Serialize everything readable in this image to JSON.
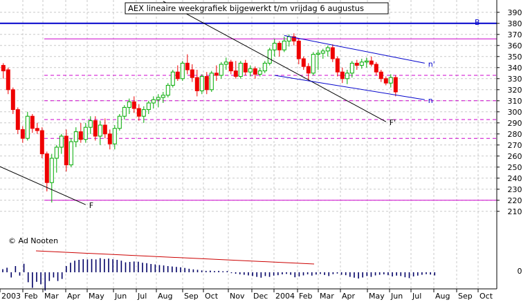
{
  "chart_data": {
    "type": "candlestick",
    "title": "AEX lineaire weekgrafiek bijgewerkt t/m vrijdag 6 augustus",
    "credit": "© Ad Nooten",
    "y_axis": {
      "min": 200,
      "max": 395,
      "position": "right",
      "ticks": [
        210,
        220,
        230,
        240,
        250,
        260,
        270,
        280,
        290,
        300,
        310,
        320,
        330,
        340,
        350,
        360,
        370,
        380,
        390
      ]
    },
    "x_axis": {
      "labels": [
        "2003",
        "Feb",
        "Mar",
        "Apr",
        "May",
        "Jun",
        "Jul",
        "Aug",
        "Sep",
        "Oct",
        "Nov",
        "Dec",
        "2004",
        "Feb",
        "Mar",
        "Apr",
        "May",
        "Jun",
        "Jul",
        "Aug",
        "Sep",
        "Oct"
      ]
    },
    "grid": true,
    "volume_axis_label": "0",
    "weeks": [
      [
        342,
        344,
        330,
        337
      ],
      [
        338,
        340,
        316,
        320
      ],
      [
        320,
        322,
        298,
        302
      ],
      [
        302,
        304,
        280,
        284
      ],
      [
        284,
        287,
        272,
        276
      ],
      [
        276,
        300,
        274,
        296
      ],
      [
        296,
        298,
        281,
        285
      ],
      [
        285,
        290,
        280,
        283
      ],
      [
        283,
        286,
        258,
        262
      ],
      [
        262,
        264,
        228,
        236
      ],
      [
        236,
        262,
        218,
        258
      ],
      [
        258,
        270,
        245,
        268
      ],
      [
        268,
        280,
        262,
        278
      ],
      [
        278,
        284,
        246,
        252
      ],
      [
        252,
        276,
        250,
        273
      ],
      [
        273,
        286,
        268,
        282
      ],
      [
        282,
        290,
        272,
        275
      ],
      [
        275,
        290,
        272,
        286
      ],
      [
        286,
        296,
        280,
        292
      ],
      [
        292,
        296,
        274,
        278
      ],
      [
        278,
        292,
        270,
        288
      ],
      [
        288,
        294,
        276,
        280
      ],
      [
        280,
        284,
        266,
        271
      ],
      [
        271,
        288,
        266,
        285
      ],
      [
        285,
        298,
        283,
        296
      ],
      [
        296,
        306,
        293,
        304
      ],
      [
        304,
        312,
        298,
        309
      ],
      [
        309,
        314,
        299,
        303
      ],
      [
        303,
        307,
        292,
        296
      ],
      [
        296,
        305,
        290,
        302
      ],
      [
        302,
        310,
        298,
        308
      ],
      [
        308,
        314,
        303,
        311
      ],
      [
        311,
        316,
        304,
        313
      ],
      [
        313,
        318,
        308,
        315
      ],
      [
        315,
        326,
        313,
        324
      ],
      [
        324,
        338,
        322,
        336
      ],
      [
        336,
        342,
        328,
        330
      ],
      [
        330,
        346,
        328,
        344
      ],
      [
        344,
        352,
        334,
        338
      ],
      [
        338,
        343,
        327,
        331
      ],
      [
        331,
        338,
        314,
        319
      ],
      [
        319,
        334,
        316,
        332
      ],
      [
        332,
        336,
        316,
        320
      ],
      [
        320,
        337,
        318,
        335
      ],
      [
        335,
        342,
        328,
        333
      ],
      [
        333,
        345,
        330,
        343
      ],
      [
        343,
        349,
        338,
        345
      ],
      [
        345,
        347,
        334,
        337
      ],
      [
        337,
        346,
        330,
        332
      ],
      [
        332,
        346,
        330,
        344
      ],
      [
        344,
        347,
        333,
        336
      ],
      [
        336,
        342,
        332,
        339
      ],
      [
        339,
        341,
        330,
        334
      ],
      [
        334,
        340,
        332,
        337
      ],
      [
        337,
        346,
        335,
        344
      ],
      [
        344,
        358,
        342,
        356
      ],
      [
        356,
        366,
        350,
        362
      ],
      [
        362,
        364,
        350,
        356
      ],
      [
        356,
        368,
        354,
        364
      ],
      [
        364,
        370,
        359,
        368
      ],
      [
        368,
        371,
        360,
        364
      ],
      [
        364,
        366,
        343,
        348
      ],
      [
        348,
        350,
        338,
        341
      ],
      [
        341,
        344,
        328,
        335
      ],
      [
        335,
        354,
        333,
        352
      ],
      [
        352,
        356,
        338,
        353
      ],
      [
        353,
        357,
        348,
        355
      ],
      [
        355,
        360,
        350,
        358
      ],
      [
        358,
        361,
        345,
        348
      ],
      [
        348,
        350,
        332,
        336
      ],
      [
        336,
        340,
        326,
        330
      ],
      [
        330,
        338,
        325,
        335
      ],
      [
        335,
        346,
        331,
        344
      ],
      [
        344,
        347,
        338,
        342
      ],
      [
        342,
        348,
        339,
        345
      ],
      [
        345,
        349,
        340,
        346
      ],
      [
        346,
        350,
        341,
        343
      ],
      [
        343,
        345,
        333,
        336
      ],
      [
        336,
        338,
        327,
        330
      ],
      [
        330,
        332,
        324,
        326
      ],
      [
        326,
        334,
        322,
        331
      ],
      [
        331,
        333,
        314,
        318
      ]
    ],
    "volume_signed": [
      1.5,
      2.2,
      -2.5,
      3.0,
      -1.6,
      4.1,
      -4.8,
      -7.5,
      -4.6,
      -5.8,
      -8.8,
      -4.2,
      -2.5,
      -4.2,
      -3.2,
      3.0,
      4.6,
      5.6,
      6.0,
      6.3,
      6.2,
      6.4,
      6.2,
      6.8,
      6.4,
      6.6,
      6.3,
      6.0,
      5.6,
      4.8,
      5.0,
      5.2,
      5.1,
      4.6,
      4.4,
      4.0,
      3.8,
      3.5,
      3.3,
      3.0,
      2.8,
      2.6,
      2.4,
      2.1,
      1.7,
      1.4,
      1.2,
      0.9,
      0.7,
      0.8,
      0.6,
      0.7,
      0.5,
      0.6,
      -0.4,
      -0.7,
      -1.0,
      -1.2,
      -1.5,
      -1.8,
      -2.2,
      -2.6,
      -1.8,
      -2.2,
      -1.6,
      -1.4,
      -1.0,
      -0.8,
      -1.2,
      -2.4,
      -2.0,
      -1.5,
      -1.0,
      -1.6,
      -1.1,
      -0.8,
      -1.3,
      -1.8,
      -0.9,
      -0.6,
      -1.2,
      -1.4,
      -2.2,
      -2.6,
      -3.0,
      -2.5,
      -1.8,
      -2.2,
      -1.5,
      -1.2,
      -1.0,
      -1.4,
      -2.0,
      -1.6,
      -1.8,
      -2.4,
      -2.8,
      -2.0,
      -1.6,
      -1.2,
      -0.9,
      -1.1,
      -1.5
    ],
    "horizontal_lines": [
      {
        "value": 380,
        "style": "solid",
        "color": "#0000cc",
        "label": "B"
      },
      {
        "value": 366,
        "style": "solid",
        "color": "#cc00cc"
      },
      {
        "value": 333,
        "style": "dashed",
        "color": "#cc00cc"
      },
      {
        "value": 310,
        "style": "dashed",
        "color": "#cc00cc"
      },
      {
        "value": 293,
        "style": "dashed",
        "color": "#cc00cc"
      },
      {
        "value": 276,
        "style": "dashed",
        "color": "#cc00cc"
      },
      {
        "value": 220,
        "style": "solid",
        "color": "#cc00cc"
      }
    ],
    "trend_lines": [
      {
        "label": "F",
        "color": "#000000",
        "from": {
          "week": -2,
          "value": 253
        },
        "to": {
          "week": 17,
          "value": 216
        }
      },
      {
        "label": "F'",
        "color": "#000000",
        "from": {
          "week": 33,
          "value": 400
        },
        "to": {
          "week": 79,
          "value": 291
        }
      },
      {
        "label": "n'",
        "color": "#0000cc",
        "from": {
          "week": 58,
          "value": 369
        },
        "to": {
          "week": 87,
          "value": 344
        }
      },
      {
        "label": "n",
        "color": "#0000cc",
        "from": {
          "week": 56,
          "value": 333
        },
        "to": {
          "week": 87,
          "value": 311
        }
      },
      {
        "label": "",
        "color": "#cc0000",
        "from": {
          "week": 4,
          "value": 218
        },
        "to": {
          "week": 60,
          "value": 212
        },
        "pane": "volume"
      }
    ],
    "colors": {
      "up": "#00aa00",
      "down": "#ee0000",
      "grid": "#c8c8c8",
      "text_box_border": "#000000"
    }
  }
}
